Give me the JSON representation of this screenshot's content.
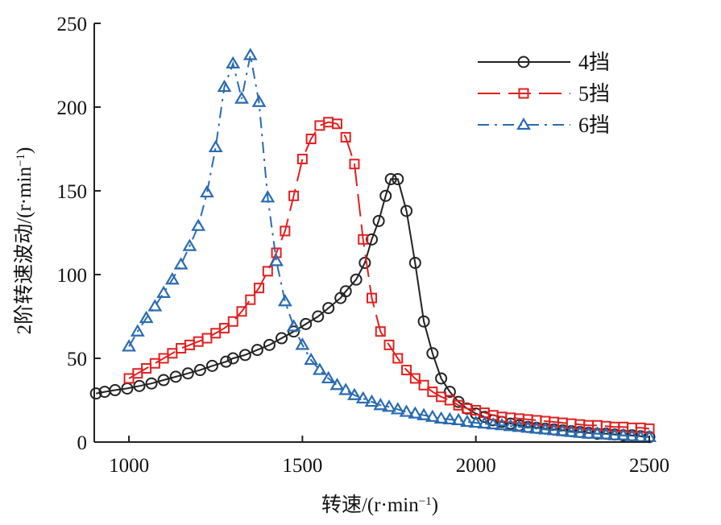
{
  "chart_data": {
    "type": "line",
    "title": "",
    "xlabel": "转速/(r·min⁻¹)",
    "xlabel_parts": {
      "main": "转速/(r·min",
      "sup": "−1",
      "tail": ")"
    },
    "ylabel": "2阶转速波动/(r·min⁻¹)",
    "ylabel_parts": {
      "main": "2阶转速波动/(r·min",
      "sup": "−1",
      "tail": ")"
    },
    "xlim": [
      900,
      2500
    ],
    "ylim": [
      0,
      250
    ],
    "xticks": [
      1000,
      1500,
      2000,
      2500
    ],
    "yticks": [
      0,
      50,
      100,
      150,
      200,
      250
    ],
    "grid": false,
    "legend_position": "top-right",
    "series": [
      {
        "name": "4挡",
        "color": "#222222",
        "marker": "circle",
        "linestyle": "solid",
        "x": [
          905,
          930,
          960,
          995,
          1030,
          1065,
          1100,
          1135,
          1170,
          1205,
          1240,
          1280,
          1300,
          1335,
          1370,
          1405,
          1440,
          1475,
          1510,
          1545,
          1575,
          1610,
          1625,
          1655,
          1680,
          1700,
          1720,
          1740,
          1755,
          1775,
          1800,
          1825,
          1850,
          1875,
          1900,
          1925,
          1950,
          1975,
          2000,
          2025,
          2050,
          2075,
          2100,
          2125,
          2150,
          2175,
          2200,
          2225,
          2250,
          2275,
          2300,
          2325,
          2350,
          2375,
          2400,
          2425,
          2450,
          2475,
          2500
        ],
        "values": [
          29,
          30,
          31,
          32,
          33.5,
          35,
          37,
          39,
          41,
          43,
          45.5,
          48,
          50,
          52,
          55,
          58,
          62,
          66,
          70.5,
          75,
          80,
          86,
          90,
          97,
          107,
          121,
          132,
          147,
          157,
          157,
          138,
          107,
          72,
          53,
          38,
          30,
          24,
          20,
          17,
          15,
          13,
          12,
          11,
          10,
          9,
          8.5,
          8,
          7.5,
          7,
          6.5,
          6,
          5.5,
          5,
          5,
          4.5,
          4,
          4,
          3.5,
          3
        ]
      },
      {
        "name": "5挡",
        "color": "#e02020",
        "marker": "square",
        "linestyle": "dashed",
        "x": [
          1000,
          1025,
          1050,
          1075,
          1100,
          1125,
          1150,
          1175,
          1200,
          1225,
          1250,
          1275,
          1300,
          1325,
          1350,
          1375,
          1400,
          1425,
          1450,
          1475,
          1500,
          1525,
          1550,
          1575,
          1600,
          1625,
          1650,
          1675,
          1700,
          1725,
          1750,
          1775,
          1800,
          1825,
          1850,
          1875,
          1900,
          1925,
          1950,
          1975,
          2000,
          2025,
          2050,
          2075,
          2100,
          2125,
          2150,
          2175,
          2200,
          2225,
          2250,
          2275,
          2300,
          2325,
          2350,
          2375,
          2400,
          2425,
          2450,
          2475,
          2500
        ],
        "values": [
          38,
          41,
          44,
          47,
          50,
          53,
          56,
          58,
          60,
          62,
          65,
          68,
          72,
          78,
          85,
          92,
          102,
          113,
          126,
          147,
          169,
          181,
          189,
          191,
          190,
          182,
          166,
          121,
          86,
          66,
          58,
          50,
          43,
          38,
          34,
          30,
          27,
          25,
          22,
          20,
          19,
          17.5,
          16,
          15,
          14.5,
          14,
          13.5,
          13,
          12.5,
          12,
          11.5,
          11,
          10.5,
          10,
          10,
          9.5,
          9,
          9,
          8.5,
          8.5,
          8
        ]
      },
      {
        "name": "6挡",
        "color": "#2a6bb0",
        "marker": "triangle",
        "linestyle": "dashdot",
        "x": [
          1000,
          1025,
          1050,
          1075,
          1100,
          1125,
          1150,
          1175,
          1200,
          1225,
          1250,
          1275,
          1300,
          1325,
          1350,
          1375,
          1400,
          1425,
          1450,
          1475,
          1500,
          1525,
          1550,
          1575,
          1600,
          1625,
          1650,
          1675,
          1700,
          1725,
          1750,
          1775,
          1800,
          1825,
          1850,
          1875,
          1900,
          1925,
          1950,
          1975,
          2000,
          2025,
          2050,
          2075,
          2100,
          2125,
          2150,
          2175,
          2200,
          2225,
          2250,
          2275,
          2300,
          2325,
          2350,
          2375,
          2400,
          2425,
          2450,
          2475,
          2500
        ],
        "values": [
          57,
          66,
          74,
          81,
          89,
          97,
          106,
          117,
          129,
          149,
          176,
          212,
          226,
          205,
          231,
          203,
          146,
          108,
          84,
          69,
          58,
          49,
          43,
          38,
          34,
          31,
          28,
          26,
          24,
          22,
          21,
          19.5,
          18,
          17,
          16,
          15,
          14,
          13.5,
          13,
          12,
          11.5,
          11,
          10.5,
          10,
          9.5,
          9,
          8.5,
          8,
          7.5,
          7,
          6.5,
          6,
          5.5,
          5,
          5,
          4.5,
          4,
          4,
          3.5,
          3,
          3
        ]
      }
    ]
  }
}
